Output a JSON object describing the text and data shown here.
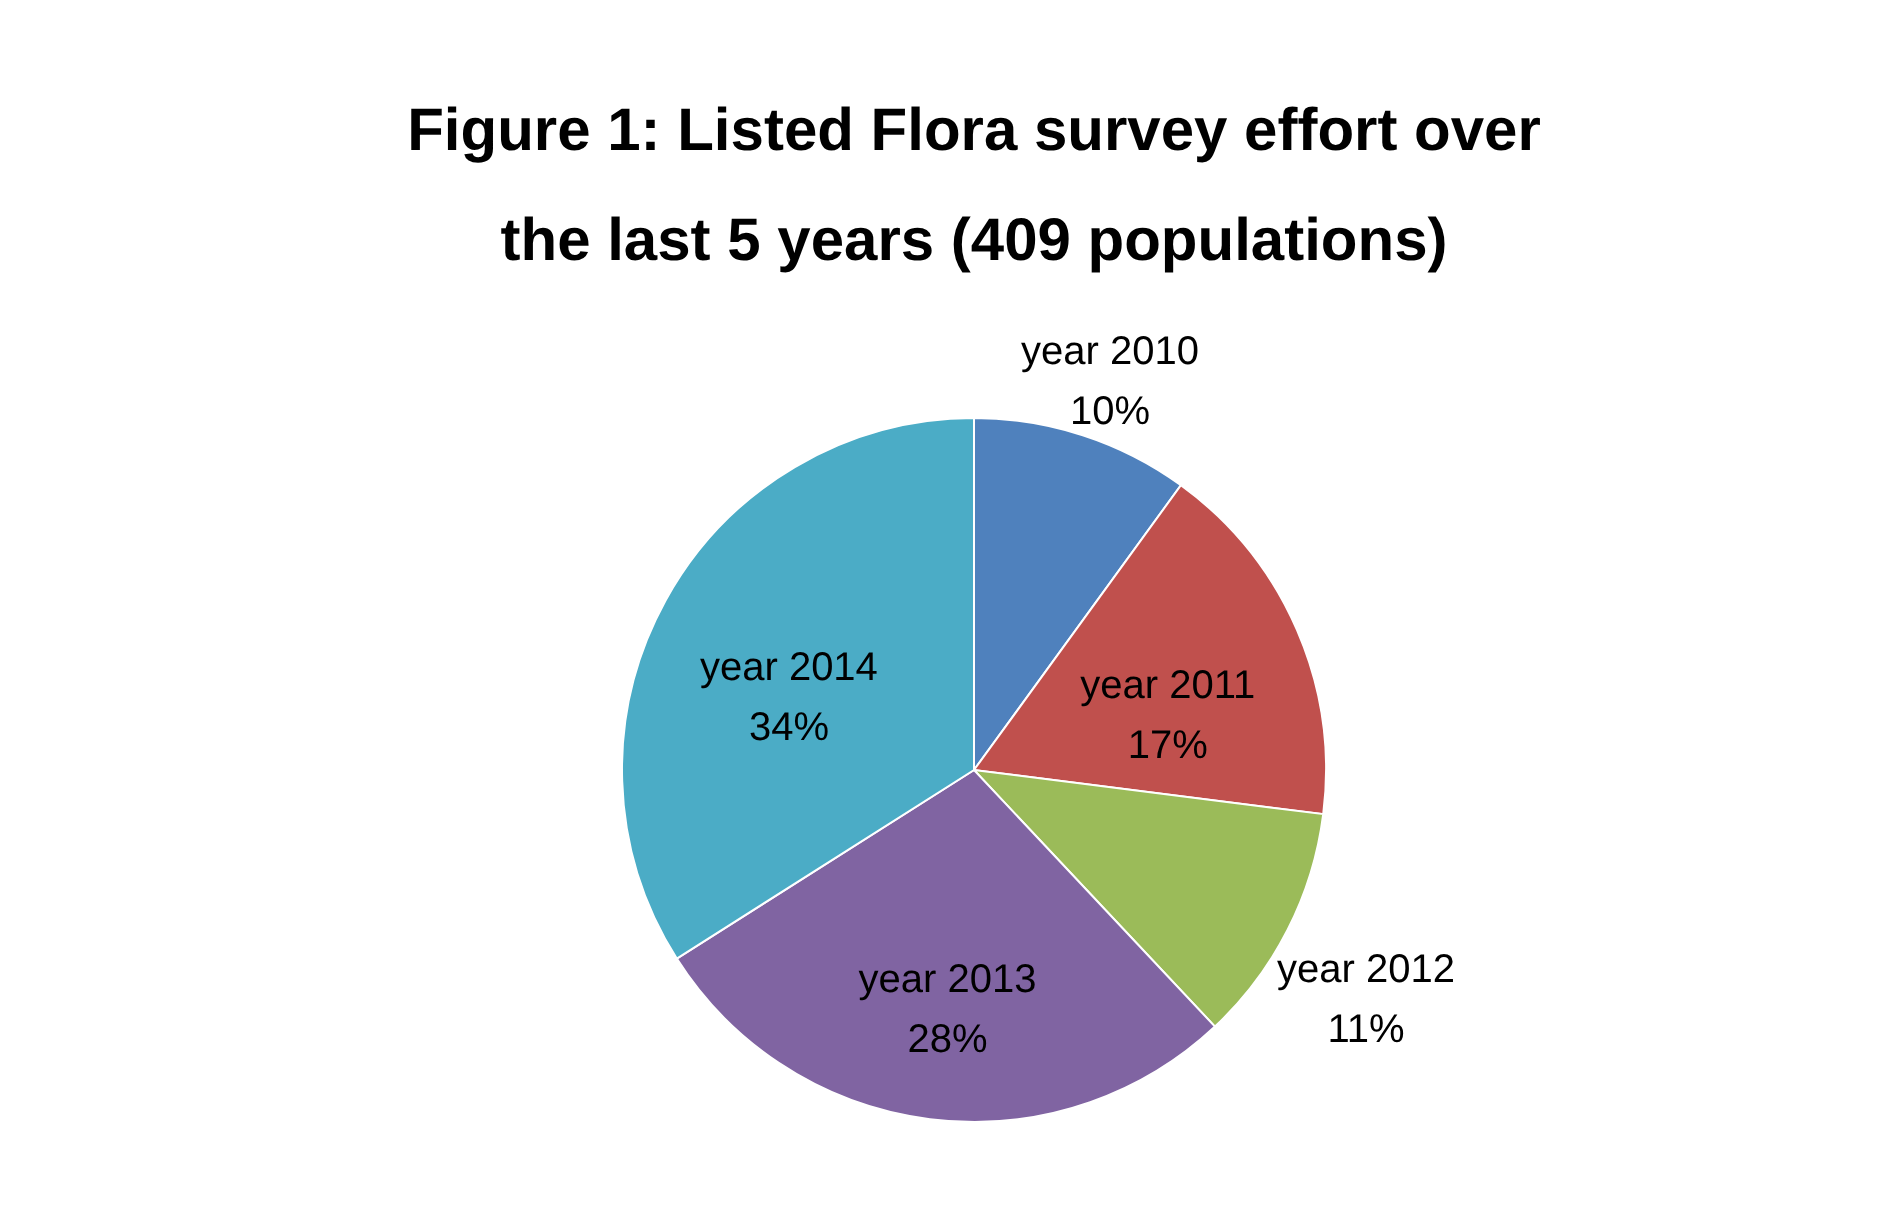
{
  "chart_data": {
    "type": "pie",
    "title": "Figure 1: Listed Flora survey effort over the last 5 years (409 populations)",
    "categories": [
      "year 2010",
      "year 2011",
      "year 2012",
      "year 2013",
      "year 2014"
    ],
    "values": [
      10,
      17,
      11,
      28,
      34
    ],
    "value_labels": [
      "10%",
      "17%",
      "11%",
      "28%",
      "34%"
    ],
    "colors": [
      "#4f81bd",
      "#c0504d",
      "#9bbb59",
      "#8064a2",
      "#4bacc6"
    ],
    "legend": false
  }
}
